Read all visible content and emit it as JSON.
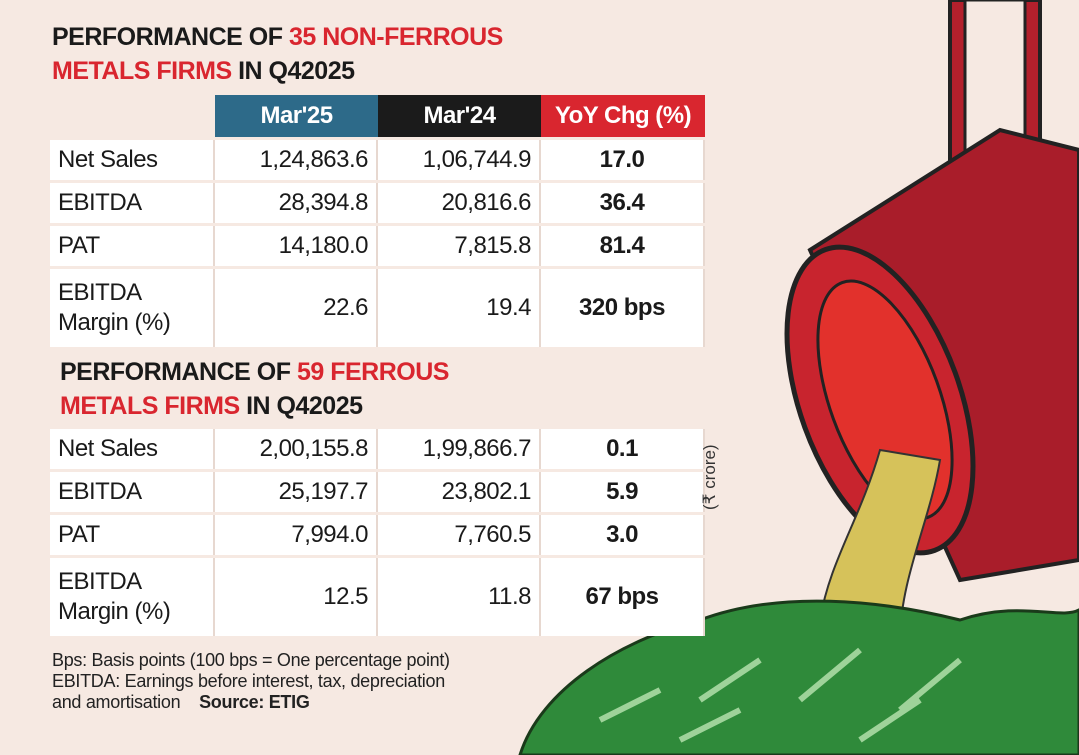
{
  "sections": [
    {
      "title": {
        "lead": "PERFORMANCE OF",
        "highlight": "35 NON-FERROUS METALS FIRMS",
        "tail": "IN Q42025"
      },
      "headers": [
        "Mar'25",
        "Mar'24",
        "YoY Chg (%)"
      ],
      "rows": [
        {
          "label": "Net Sales",
          "mar25": "1,24,863.6",
          "mar24": "1,06,744.9",
          "change": "17.0"
        },
        {
          "label": "EBITDA",
          "mar25": "28,394.8",
          "mar24": "20,816.6",
          "change": "36.4"
        },
        {
          "label": "PAT",
          "mar25": "14,180.0",
          "mar24": "7,815.8",
          "change": "81.4"
        },
        {
          "label": "EBITDA Margin (%)",
          "mar25": "22.6",
          "mar24": "19.4",
          "change": "320 bps"
        }
      ]
    },
    {
      "title": {
        "lead": "PERFORMANCE OF",
        "highlight": "59 FERROUS METALS FIRMS",
        "tail": "IN Q42025"
      },
      "rows": [
        {
          "label": "Net Sales",
          "mar25": "2,00,155.8",
          "mar24": "1,99,866.7",
          "change": "0.1"
        },
        {
          "label": "EBITDA",
          "mar25": "25,197.7",
          "mar24": "23,802.1",
          "change": "5.9"
        },
        {
          "label": "PAT",
          "mar25": "7,994.0",
          "mar24": "7,760.5",
          "change": "3.0"
        },
        {
          "label": "EBITDA Margin (%)",
          "mar25": "12.5",
          "mar24": "11.8",
          "change": "67 bps"
        }
      ]
    }
  ],
  "unit": "(₹ crore)",
  "footnotes": [
    "Bps: Basis points (100 bps = One percentage point)",
    "EBITDA: Earnings before interest, tax, depreciation",
    "and amortisation"
  ],
  "source": "Source: ETIG"
}
